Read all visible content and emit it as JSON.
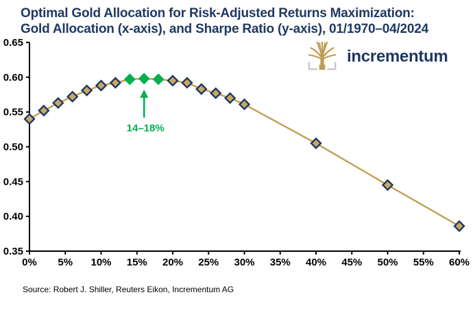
{
  "title": {
    "line1": "Optimal Gold Allocation for Risk-Adjusted Returns Maximization:",
    "line2": "Gold Allocation (x-axis), and Sharpe Ratio (y-axis), 01/1970–04/2024"
  },
  "logo": {
    "text": "incrementum",
    "tree_icon": "gold-tree-icon"
  },
  "source": "Source: Robert J. Shiller, Reuters Eikon, Incrementum AG",
  "chart_data": {
    "type": "line",
    "title": "Optimal Gold Allocation for Risk-Adjusted Returns Maximization",
    "subtitle": "Gold Allocation (x-axis), and Sharpe Ratio (y-axis), 01/1970–04/2024",
    "xlabel": "Gold Allocation",
    "ylabel": "Sharpe Ratio",
    "xlim": [
      0,
      60
    ],
    "ylim": [
      0.35,
      0.65
    ],
    "x_tick_step": 5,
    "y_tick_step": 0.05,
    "x_tick_labels": [
      "0%",
      "5%",
      "10%",
      "15%",
      "20%",
      "25%",
      "30%",
      "35%",
      "40%",
      "45%",
      "50%",
      "55%",
      "60%"
    ],
    "y_tick_labels": [
      "0.35",
      "0.40",
      "0.45",
      "0.50",
      "0.55",
      "0.60",
      "0.65"
    ],
    "grid": false,
    "legend": false,
    "series": [
      {
        "name": "Sharpe ratio by gold allocation",
        "x_percent": [
          0,
          2,
          4,
          6,
          8,
          10,
          12,
          14,
          16,
          18,
          20,
          22,
          24,
          26,
          28,
          30,
          40,
          50,
          60
        ],
        "y_sharpe": [
          0.54,
          0.552,
          0.563,
          0.572,
          0.581,
          0.588,
          0.592,
          0.597,
          0.598,
          0.597,
          0.595,
          0.592,
          0.583,
          0.577,
          0.57,
          0.561,
          0.505,
          0.445,
          0.386
        ]
      }
    ],
    "highlight": {
      "x_range_percent": [
        14,
        18
      ],
      "label": "14–18%",
      "arrow_x_percent": 16,
      "color": "#00B050"
    },
    "colors": {
      "navy": "#1F3864",
      "gold_line": "#BFA056",
      "gold_fill": "#C9A85F",
      "green": "#00B050",
      "axis": "#000000",
      "logo_gray": "#C9C9C9"
    }
  }
}
